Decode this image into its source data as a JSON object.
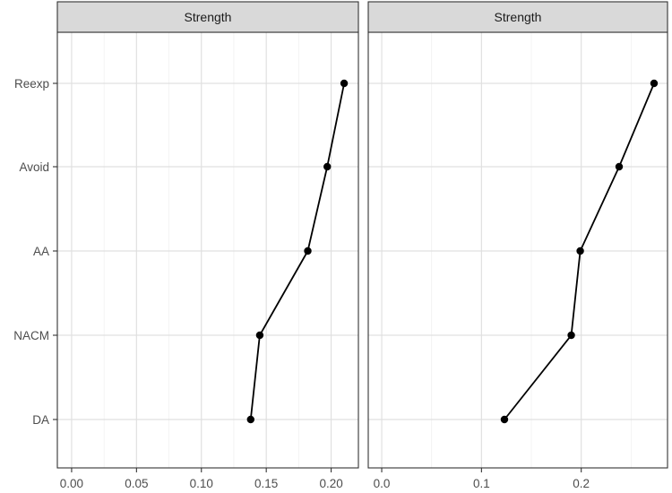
{
  "chart_data": [
    {
      "type": "line",
      "strip_label": "Strength",
      "categories": [
        "DA",
        "NACM",
        "AA",
        "Avoid",
        "Reexp"
      ],
      "values": [
        0.138,
        0.145,
        0.182,
        0.197,
        0.21
      ],
      "x_ticks": [
        0.0,
        0.05,
        0.1,
        0.15,
        0.2
      ],
      "x_tick_labels": [
        "0.00",
        "0.05",
        "0.10",
        "0.15",
        "0.20"
      ],
      "xlim": [
        -0.011,
        0.221
      ],
      "grid": true
    },
    {
      "type": "line",
      "strip_label": "Strength",
      "categories": [
        "DA",
        "NACM",
        "AA",
        "Avoid",
        "Reexp"
      ],
      "values": [
        0.123,
        0.19,
        0.199,
        0.238,
        0.273
      ],
      "x_ticks": [
        0.0,
        0.1,
        0.2
      ],
      "x_tick_labels": [
        "0.0",
        "0.1",
        "0.2"
      ],
      "xlim": [
        -0.0135,
        0.2865
      ],
      "grid": true
    }
  ]
}
